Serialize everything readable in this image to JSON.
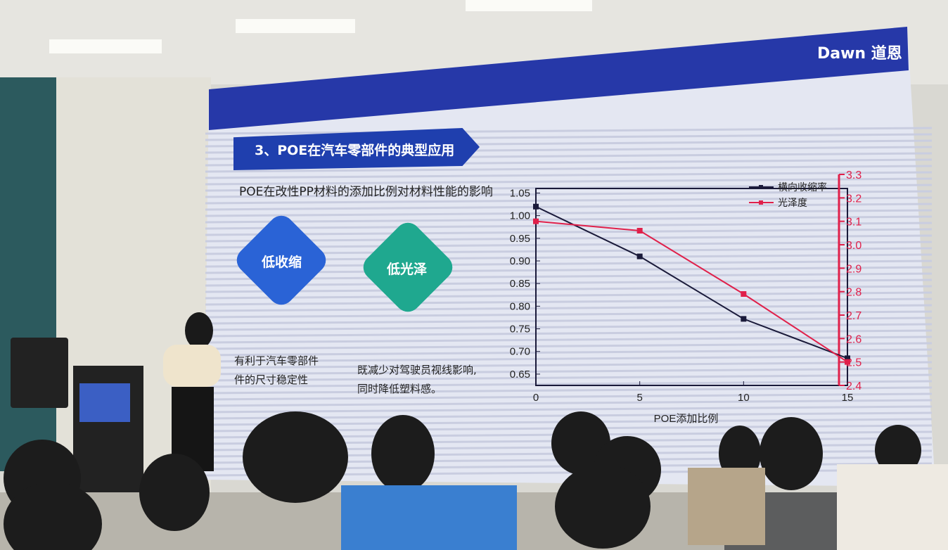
{
  "slide": {
    "logo": "Dawn 道恩",
    "section_title": "3、POE在汽车零部件的典型应用",
    "subtitle": "POE在改性PP材料的添加比例对材料性能的影响",
    "features": [
      {
        "label": "低收缩",
        "description_line1": "有利于汽车零部件",
        "description_line2": "件的尺寸稳定性",
        "color": "#2a63d6"
      },
      {
        "label": "低光泽",
        "description_line1": "既减少对驾驶员视线影响,",
        "description_line2": "同时降低塑料感。",
        "color": "#1fa88f"
      }
    ]
  },
  "chart_data": {
    "type": "line",
    "xlabel": "POE添加比例",
    "x": [
      0,
      5,
      10,
      15
    ],
    "x_ticks": [
      "0",
      "5",
      "10",
      "15"
    ],
    "xlim": [
      0,
      15
    ],
    "y_left": {
      "ylim": [
        0.625,
        1.06
      ],
      "ticks": [
        "0.65",
        "0.70",
        "0.75",
        "0.80",
        "0.85",
        "0.90",
        "0.95",
        "1.00",
        "1.05"
      ]
    },
    "y_right": {
      "ylim": [
        2.4,
        3.3
      ],
      "ticks": [
        "2.4",
        "2.5",
        "2.6",
        "2.7",
        "2.8",
        "2.9",
        "3.0",
        "3.1",
        "3.2",
        "3.3"
      ],
      "color": "#e0204a"
    },
    "series": [
      {
        "name": "横向收缩率",
        "axis": "left",
        "color": "#1a1a3a",
        "values": [
          1.02,
          0.91,
          0.772,
          0.685
        ]
      },
      {
        "name": "光泽度",
        "axis": "right",
        "color": "#e0204a",
        "values": [
          3.1,
          3.06,
          2.79,
          2.5
        ]
      }
    ],
    "legend": "top-right",
    "grid": false
  }
}
